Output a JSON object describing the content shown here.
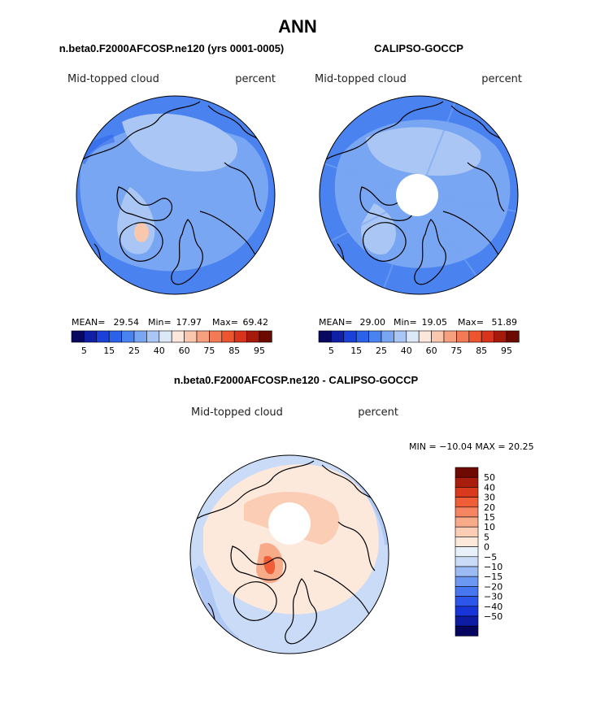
{
  "figure_title": "ANN",
  "colors": {
    "seq_scale": [
      "#08085e",
      "#0f1fa6",
      "#1a42d8",
      "#2a62ea",
      "#4a83f0",
      "#79a6f2",
      "#a9c6f4",
      "#dce8f8",
      "#fce7dc",
      "#f9c6ae",
      "#f6a07f",
      "#f27a55",
      "#ec5530",
      "#d8341c",
      "#a61a0c",
      "#6c0a02"
    ],
    "diff_scale": [
      "#050560",
      "#0d1ca3",
      "#1735d8",
      "#2c55ea",
      "#4677f0",
      "#6d98f2",
      "#9cbaf3",
      "#cadbf7",
      "#e8f0fa",
      "#fde8dc",
      "#fbcdb4",
      "#f8ab89",
      "#f58560",
      "#ef5e36",
      "#d9391c",
      "#a81d0c",
      "#6f0a03"
    ],
    "land_outline": "#000000"
  },
  "chart_data": [
    {
      "type": "contour-map",
      "projection": "north-polar-stereographic",
      "title": "n.beta0.F2000AFCOSP.ne120 (yrs 0001-0005)",
      "left_label": "Mid-topped cloud",
      "right_label": "percent",
      "stats": {
        "mean_label": "MEAN=",
        "mean": "29.54",
        "min_label": "Min=",
        "min": "17.97",
        "max_label": "Max=",
        "max": "69.42"
      },
      "colorbar": {
        "tick_labels": [
          "5",
          "15",
          "25",
          "40",
          "60",
          "75",
          "85",
          "95"
        ]
      },
      "polar_gap": false
    },
    {
      "type": "contour-map",
      "projection": "north-polar-stereographic",
      "title": "CALIPSO-GOCCP",
      "left_label": "Mid-topped cloud",
      "right_label": "percent",
      "stats": {
        "mean_label": "MEAN=",
        "mean": "29.00",
        "min_label": "Min=",
        "min": "19.05",
        "max_label": "Max=",
        "max": "51.89"
      },
      "colorbar": {
        "tick_labels": [
          "5",
          "15",
          "25",
          "40",
          "60",
          "75",
          "85",
          "95"
        ]
      },
      "polar_gap": true
    },
    {
      "type": "contour-map",
      "projection": "north-polar-stereographic",
      "title": "n.beta0.F2000AFCOSP.ne120 - CALIPSO-GOCCP",
      "left_label": "Mid-topped cloud",
      "right_label": "percent",
      "stats_text": "MIN = −10.04  MAX =  20.25",
      "colorbar": {
        "orientation": "vertical",
        "tick_labels": [
          "50",
          "40",
          "30",
          "20",
          "15",
          "10",
          "5",
          "0",
          "−5",
          "−10",
          "−15",
          "−20",
          "−30",
          "−40",
          "−50"
        ]
      },
      "polar_gap": true
    }
  ]
}
